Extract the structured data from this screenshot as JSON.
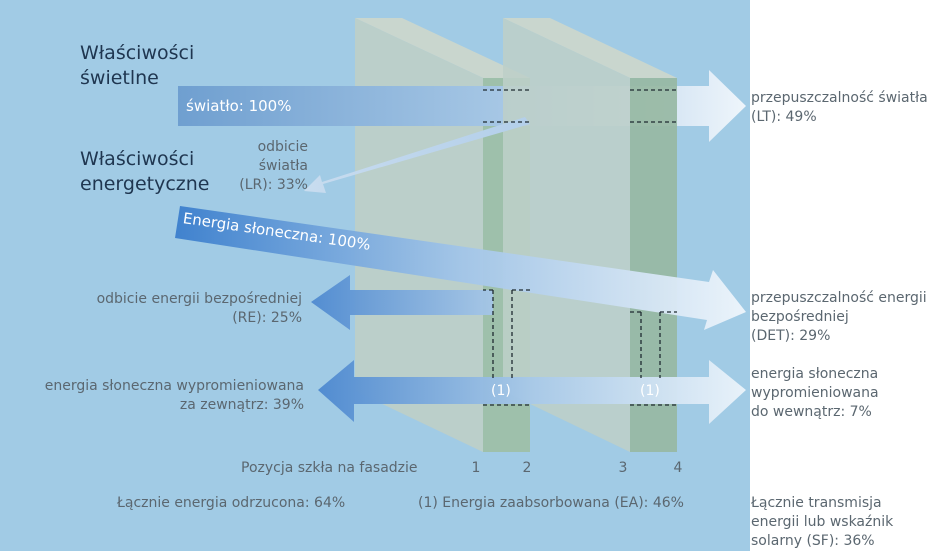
{
  "diagram": {
    "panel_color": "#a1cbe5",
    "heading_light": "Właściwości\nświetlne",
    "heading_energy": "Właściwości\nenergetyczne",
    "light_in": "światło: 100%",
    "light_reflect": "odbicie\nświatła\n(LR): 33%",
    "light_transmit": "przepuszczalność światła\n(LT): 49%",
    "energy_in": "Energia słoneczna: 100%",
    "energy_reflect": "odbicie energii bezpośredniej\n(RE): 25%",
    "energy_direct": "przepuszczalność energii\nbezpośredniej\n(DET): 29%",
    "radiated_out": "energia słoneczna wypromieniowana\nza zewnątrz: 39%",
    "radiated_in": "energia słoneczna\nwypromieniowana\ndo wewnątrz: 7%",
    "absorbed_marker": "(1)",
    "position_label": "Pozycja szkła na fasadzie",
    "positions": [
      "1",
      "2",
      "3",
      "4"
    ],
    "total_rejected": "Łącznie energia odrzucona: 64%",
    "absorbed_total": "(1) Energia zaabsorbowana (EA): 46%",
    "total_transmission": "Łącznie transmisja\nenergii lub wskaźnik\nsolarny (SF): 36%"
  }
}
